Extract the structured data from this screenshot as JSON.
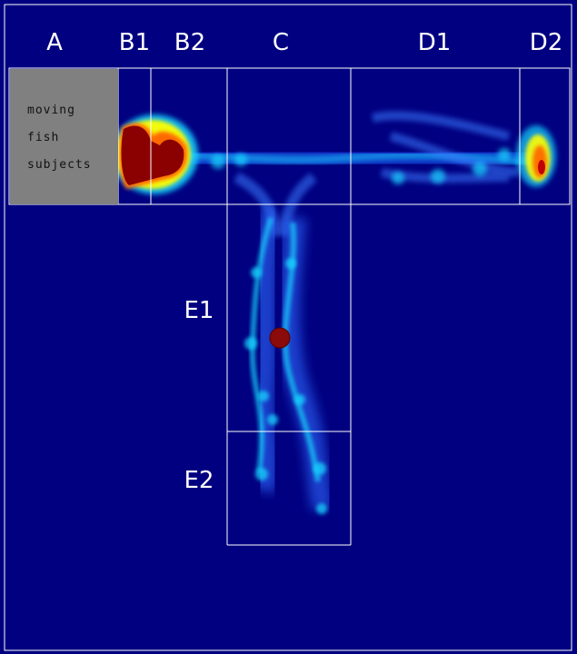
{
  "zone_labels": {
    "a": "A",
    "b1": "B1",
    "b2": "B2",
    "c": "C",
    "d1": "D1",
    "d2": "D2",
    "e1": "E1",
    "e2": "E2"
  },
  "inset": {
    "line1": "moving",
    "line2": "fish",
    "line3": "subjects"
  },
  "colors": {
    "background": "#000080",
    "grid_lines": "#ffffff",
    "inset_fill": "#808080",
    "heat_low": "#1e5bff",
    "heat_mid": "#19d7ff",
    "heat_high": "#ffff00",
    "heat_peak": "#8b0000",
    "marker": "#8b0a0a"
  },
  "heatmap_legend_note": "",
  "marker_icon": "fish-position-dot-icon"
}
